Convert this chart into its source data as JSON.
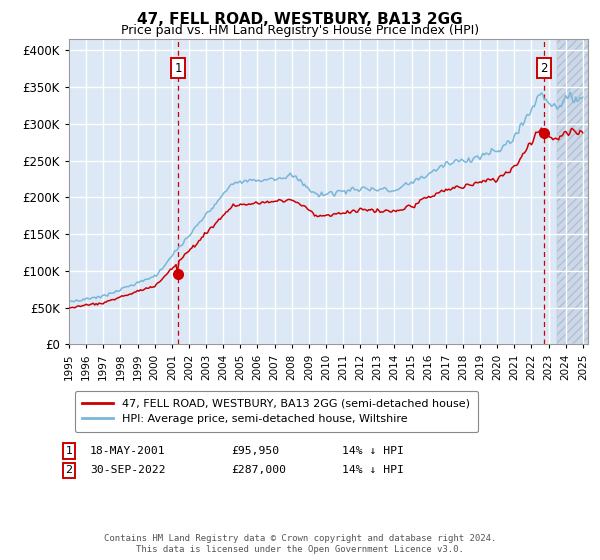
{
  "title": "47, FELL ROAD, WESTBURY, BA13 2GG",
  "subtitle": "Price paid vs. HM Land Registry's House Price Index (HPI)",
  "ytick_values": [
    0,
    50000,
    100000,
    150000,
    200000,
    250000,
    300000,
    350000,
    400000
  ],
  "ylim": [
    0,
    415000
  ],
  "xlim_start": 1995.0,
  "xlim_end": 2025.3,
  "transaction1": {
    "date_x": 2001.37,
    "price": 95950,
    "label": "1"
  },
  "transaction2": {
    "date_x": 2022.75,
    "price": 287000,
    "label": "2"
  },
  "legend_line1": "47, FELL ROAD, WESTBURY, BA13 2GG (semi-detached house)",
  "legend_line2": "HPI: Average price, semi-detached house, Wiltshire",
  "footer": "Contains HM Land Registry data © Crown copyright and database right 2024.\nThis data is licensed under the Open Government Licence v3.0.",
  "hpi_color": "#7ab6d8",
  "price_color": "#cc0000",
  "bg_color": "#dce8f5",
  "grid_color": "#ffffff",
  "dashed_color": "#cc0000",
  "hatch_bg_color": "#ccd8e8"
}
